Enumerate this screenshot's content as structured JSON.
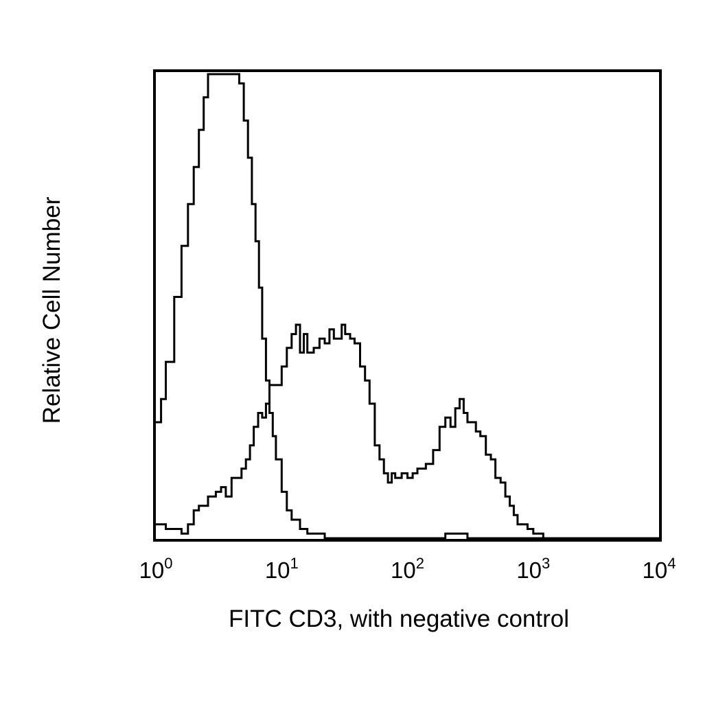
{
  "chart_data": {
    "type": "line",
    "title": "",
    "xlabel": "FITC CD3, with negative control",
    "ylabel": "Relative Cell Number",
    "x_scale": "log",
    "xlim": [
      1,
      10000
    ],
    "ylim": [
      0,
      100
    ],
    "grid": false,
    "legend": "none",
    "x_ticks": [
      {
        "value": 1,
        "base": "10",
        "exp": "0"
      },
      {
        "value": 10,
        "base": "10",
        "exp": "1"
      },
      {
        "value": 100,
        "base": "10",
        "exp": "2"
      },
      {
        "value": 1000,
        "base": "10",
        "exp": "3"
      },
      {
        "value": 10000,
        "base": "10",
        "exp": "4"
      }
    ],
    "series": [
      {
        "color": "#000000",
        "x": [
          1.0,
          1.1,
          1.2,
          1.4,
          1.6,
          1.8,
          2.0,
          2.2,
          2.4,
          2.6,
          2.8,
          3.0,
          3.2,
          3.5,
          3.8,
          4.2,
          4.6,
          5.0,
          5.4,
          5.8,
          6.2,
          6.6,
          7.0,
          7.5,
          8.0,
          8.5,
          9.0,
          10.0,
          11.0,
          12.0,
          14.0,
          16.0,
          19.0,
          22.0,
          30.0,
          60.0,
          200.0,
          300.0,
          1000.0,
          10000.0
        ],
        "values": [
          25,
          30,
          38,
          52,
          63,
          72,
          80,
          88,
          95,
          100,
          100,
          100,
          100,
          100,
          100,
          100,
          98,
          90,
          82,
          72,
          64,
          54,
          43,
          34,
          27,
          22,
          17,
          10,
          6,
          4,
          2,
          1,
          1,
          0,
          0,
          0,
          1,
          0,
          0,
          0
        ]
      },
      {
        "color": "#000000",
        "x": [
          1.0,
          1.2,
          1.4,
          1.6,
          1.8,
          2.0,
          2.2,
          2.4,
          2.6,
          2.8,
          3.0,
          3.3,
          3.6,
          4.0,
          4.4,
          4.8,
          5.2,
          5.6,
          6.0,
          6.5,
          7.0,
          7.5,
          8.0,
          9.0,
          10.0,
          11.0,
          12.0,
          13.0,
          14.0,
          15.0,
          16.0,
          18.0,
          20.0,
          22.0,
          24.0,
          26.0,
          28.0,
          30.0,
          32.0,
          35.0,
          38.0,
          42.0,
          46.0,
          50.0,
          55.0,
          60.0,
          65.0,
          70.0,
          75.0,
          80.0,
          90.0,
          100.0,
          110.0,
          120.0,
          140.0,
          160.0,
          180.0,
          200.0,
          220.0,
          240.0,
          260.0,
          280.0,
          300.0,
          320.0,
          350.0,
          380.0,
          420.0,
          460.0,
          500.0,
          550.0,
          600.0,
          650.0,
          700.0,
          750.0,
          800.0,
          900.0,
          1000.0,
          1200.0,
          10000.0
        ],
        "values": [
          3,
          2,
          2,
          1,
          3,
          6,
          7,
          7,
          9,
          9,
          10,
          11,
          9,
          13,
          13,
          15,
          17,
          20,
          24,
          27,
          26,
          29,
          33,
          33,
          37,
          41,
          44,
          46,
          40,
          44,
          40,
          41,
          43,
          42,
          45,
          43,
          43,
          46,
          44,
          43,
          42,
          37,
          34,
          29,
          20,
          17,
          14,
          12,
          14,
          13,
          14,
          13,
          14,
          15,
          16,
          19,
          24,
          26,
          24,
          28,
          30,
          27,
          25,
          25,
          23,
          22,
          18,
          17,
          13,
          12,
          9,
          7,
          5,
          3,
          3,
          2,
          1,
          0,
          0
        ]
      }
    ]
  }
}
